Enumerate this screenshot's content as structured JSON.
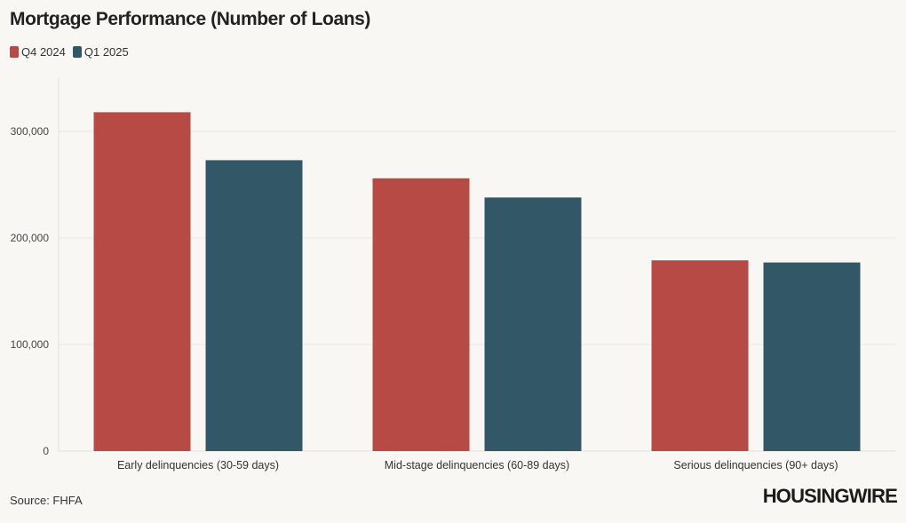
{
  "title": "Mortgage Performance (Number of Loans)",
  "source": "Source: FHFA",
  "logo_text": "HOUSINGWIRE",
  "colors": {
    "Q4 2024": "#b84a46",
    "Q1 2025": "#325767"
  },
  "chart_data": {
    "type": "bar",
    "title": "Mortgage Performance (Number of Loans)",
    "xlabel": "",
    "ylabel": "",
    "categories": [
      "Early delinquencies (30-59 days)",
      "Mid-stage delinquencies (60-89 days)",
      "Serious delinquencies (90+ days)"
    ],
    "series": [
      {
        "name": "Q4 2024",
        "values": [
          318000,
          256000,
          179000
        ]
      },
      {
        "name": "Q1 2025",
        "values": [
          273000,
          238000,
          177000
        ]
      }
    ],
    "ylim": [
      0,
      350000
    ],
    "yticks": [
      0,
      100000,
      200000,
      300000
    ],
    "ytick_labels": [
      "0",
      "100,000",
      "200,000",
      "300,000"
    ],
    "grid": true,
    "legend": "top-left"
  }
}
